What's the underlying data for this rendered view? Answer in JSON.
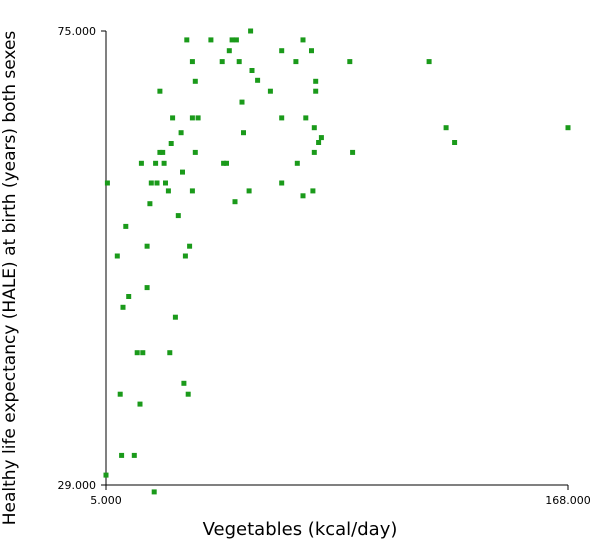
{
  "chart_data": {
    "type": "scatter",
    "xlabel": "Vegetables (kcal/day)",
    "ylabel": "Healthy life expectancy (HALE) at birth (years) both sexes",
    "xlim": [
      5,
      168
    ],
    "ylim": [
      29,
      75
    ],
    "x_ticks": [
      "5.000",
      "168.000"
    ],
    "y_ticks": [
      "75.000",
      "29.000"
    ],
    "grid": false,
    "marker_color": "#1a9a1a",
    "series": [
      {
        "points": [
          [
            5,
            30.0
          ],
          [
            5.5,
            59.6
          ],
          [
            9,
            52.2
          ],
          [
            10,
            38.2
          ],
          [
            10.5,
            32.0
          ],
          [
            11,
            47.0
          ],
          [
            12,
            55.2
          ],
          [
            13,
            48.1
          ],
          [
            15,
            32.0
          ],
          [
            16,
            42.4
          ],
          [
            17,
            37.2
          ],
          [
            17.5,
            61.6
          ],
          [
            18,
            42.4
          ],
          [
            19.5,
            53.2
          ],
          [
            19.5,
            49.0
          ],
          [
            20.5,
            57.5
          ],
          [
            21,
            59.6
          ],
          [
            22,
            28.3
          ],
          [
            22.5,
            61.6
          ],
          [
            23,
            59.6
          ],
          [
            24,
            62.7
          ],
          [
            24,
            68.9
          ],
          [
            25,
            62.7
          ],
          [
            25.5,
            61.6
          ],
          [
            26,
            59.6
          ],
          [
            27,
            58.8
          ],
          [
            27.5,
            42.4
          ],
          [
            28,
            63.6
          ],
          [
            28.5,
            66.2
          ],
          [
            29.5,
            46.0
          ],
          [
            30.5,
            56.3
          ],
          [
            31.5,
            64.7
          ],
          [
            32,
            60.7
          ],
          [
            32.5,
            39.3
          ],
          [
            33,
            52.2
          ],
          [
            33.5,
            74.1
          ],
          [
            34.5,
            53.2
          ],
          [
            34,
            38.2
          ],
          [
            35.5,
            71.9
          ],
          [
            35.5,
            66.2
          ],
          [
            35.5,
            58.8
          ],
          [
            36.5,
            69.9
          ],
          [
            36.5,
            62.7
          ],
          [
            37.5,
            66.2
          ],
          [
            42,
            74.1
          ],
          [
            46,
            71.9
          ],
          [
            46.5,
            61.6
          ],
          [
            47.5,
            61.6
          ],
          [
            48.5,
            73.0
          ],
          [
            49.5,
            74.1
          ],
          [
            50.5,
            57.7
          ],
          [
            51,
            74.1
          ],
          [
            52,
            71.9
          ],
          [
            53,
            67.8
          ],
          [
            53.5,
            64.7
          ],
          [
            55.5,
            58.8
          ],
          [
            56,
            75.0
          ],
          [
            56.5,
            71.0
          ],
          [
            58.5,
            70.0
          ],
          [
            63,
            68.9
          ],
          [
            67,
            73.0
          ],
          [
            67,
            66.2
          ],
          [
            67,
            59.6
          ],
          [
            72,
            71.9
          ],
          [
            72.5,
            61.6
          ],
          [
            74.5,
            58.3
          ],
          [
            74.5,
            74.1
          ],
          [
            75.5,
            66.2
          ],
          [
            77.5,
            73.0
          ],
          [
            78,
            58.8
          ],
          [
            78.5,
            65.2
          ],
          [
            78.5,
            62.7
          ],
          [
            79,
            69.9
          ],
          [
            79,
            68.9
          ],
          [
            80,
            63.7
          ],
          [
            81,
            64.2
          ],
          [
            91,
            71.9
          ],
          [
            92,
            62.7
          ],
          [
            119,
            71.9
          ],
          [
            125,
            65.2
          ],
          [
            128,
            63.7
          ],
          [
            168,
            65.2
          ]
        ]
      }
    ]
  }
}
